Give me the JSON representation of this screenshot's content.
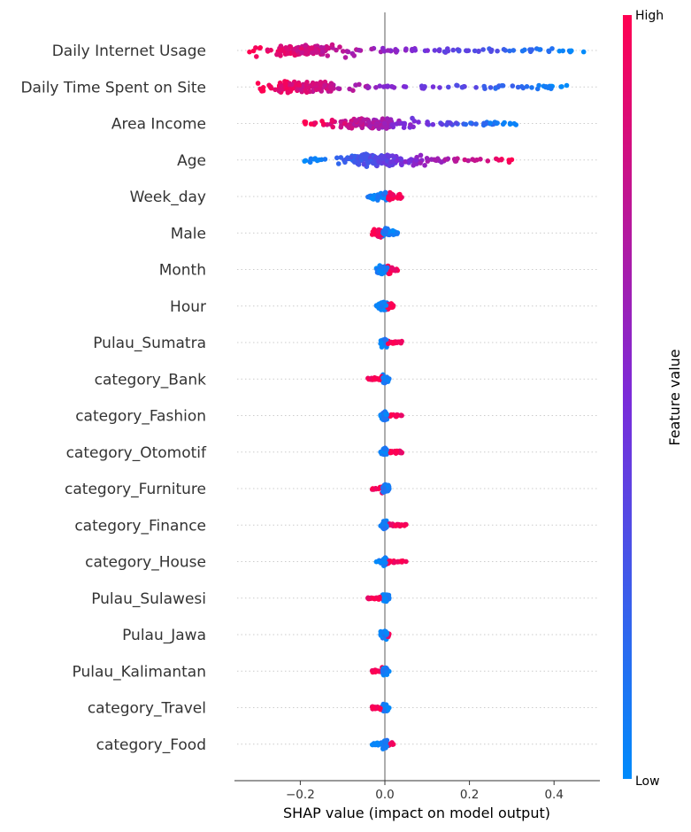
{
  "chart_data": {
    "type": "scatter",
    "subtype": "shap-beeswarm",
    "xlabel": "SHAP value (impact on model output)",
    "xlim": [
      -0.36,
      0.51
    ],
    "xticks": [
      -0.2,
      0.0,
      0.2,
      0.4
    ],
    "xtick_labels": [
      "−0.2",
      "0.0",
      "0.2",
      "0.4"
    ],
    "colorbar": {
      "label": "Feature value",
      "high_label": "High",
      "low_label": "Low",
      "high_color": "#ff0051",
      "low_color": "#008bfb"
    },
    "features": [
      {
        "name": "Daily Internet Usage",
        "min": -0.32,
        "max": 0.47,
        "main": [
          -0.25,
          -0.13
        ],
        "side": "neg-high"
      },
      {
        "name": "Daily Time Spent on Site",
        "min": -0.3,
        "max": 0.43,
        "main": [
          -0.25,
          -0.12
        ],
        "side": "neg-high"
      },
      {
        "name": "Area Income",
        "min": -0.19,
        "max": 0.31,
        "main": [
          -0.1,
          0.02
        ],
        "side": "neg-high"
      },
      {
        "name": "Age",
        "min": -0.19,
        "max": 0.3,
        "main": [
          -0.08,
          0.04
        ],
        "side": "pos-high"
      },
      {
        "name": "Week_day",
        "min": -0.04,
        "max": 0.04,
        "main": [
          -0.02,
          0.02
        ],
        "side": "pos-high"
      },
      {
        "name": "Male",
        "min": -0.03,
        "max": 0.03,
        "main": [
          -0.02,
          0.01
        ],
        "side": "neg-high"
      },
      {
        "name": "Month",
        "min": -0.02,
        "max": 0.03,
        "main": [
          -0.01,
          0.01
        ],
        "side": "mixed"
      },
      {
        "name": "Hour",
        "min": -0.02,
        "max": 0.02,
        "main": [
          -0.01,
          0.01
        ],
        "side": "mixed"
      },
      {
        "name": "Pulau_Sumatra",
        "min": -0.01,
        "max": 0.04,
        "main": [
          -0.005,
          0.005
        ],
        "side": "pos-high"
      },
      {
        "name": "category_Bank",
        "min": -0.04,
        "max": 0.01,
        "main": [
          -0.005,
          0.005
        ],
        "side": "neg-high"
      },
      {
        "name": "category_Fashion",
        "min": -0.01,
        "max": 0.04,
        "main": [
          -0.005,
          0.005
        ],
        "side": "pos-high"
      },
      {
        "name": "category_Otomotif",
        "min": -0.01,
        "max": 0.04,
        "main": [
          -0.005,
          0.005
        ],
        "side": "pos-high"
      },
      {
        "name": "category_Furniture",
        "min": -0.03,
        "max": 0.01,
        "main": [
          -0.005,
          0.005
        ],
        "side": "neg-high"
      },
      {
        "name": "category_Finance",
        "min": -0.01,
        "max": 0.05,
        "main": [
          -0.005,
          0.005
        ],
        "side": "pos-high"
      },
      {
        "name": "category_House",
        "min": -0.02,
        "max": 0.05,
        "main": [
          -0.005,
          0.005
        ],
        "side": "pos-high"
      },
      {
        "name": "Pulau_Sulawesi",
        "min": -0.04,
        "max": 0.01,
        "main": [
          -0.005,
          0.005
        ],
        "side": "neg-high"
      },
      {
        "name": "Pulau_Jawa",
        "min": -0.01,
        "max": 0.01,
        "main": [
          -0.005,
          0.005
        ],
        "side": "pos-high"
      },
      {
        "name": "Pulau_Kalimantan",
        "min": -0.03,
        "max": 0.01,
        "main": [
          -0.005,
          0.005
        ],
        "side": "neg-high"
      },
      {
        "name": "category_Travel",
        "min": -0.03,
        "max": 0.01,
        "main": [
          -0.005,
          0.005
        ],
        "side": "neg-high"
      },
      {
        "name": "category_Food",
        "min": -0.03,
        "max": 0.02,
        "main": [
          -0.005,
          0.005
        ],
        "side": "pos-high"
      }
    ]
  }
}
